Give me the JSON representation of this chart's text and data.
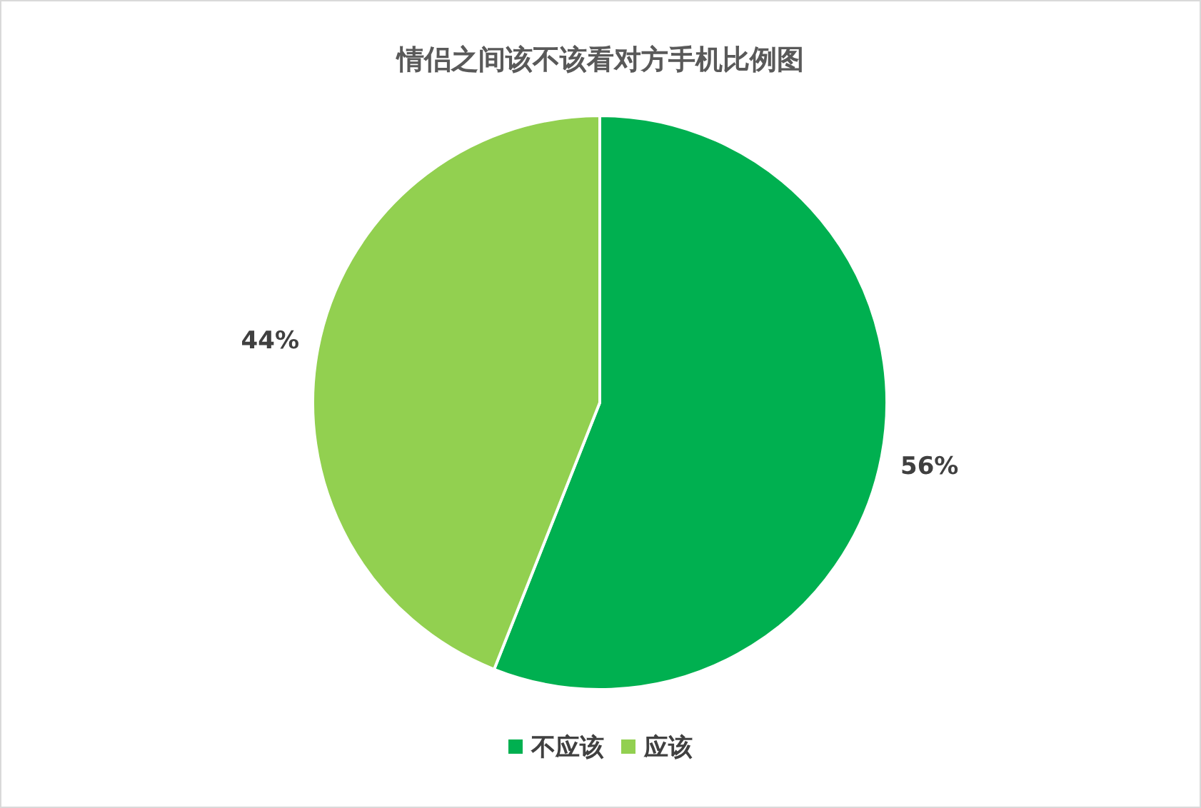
{
  "chart_data": {
    "type": "pie",
    "title": "情侣之间该不该看对方手机比例图",
    "categories": [
      "不应该",
      "应该"
    ],
    "values": [
      56,
      44
    ],
    "colors": [
      "#00b050",
      "#92d050"
    ],
    "value_labels": [
      "56%",
      "44%"
    ],
    "legend": "bottom"
  }
}
